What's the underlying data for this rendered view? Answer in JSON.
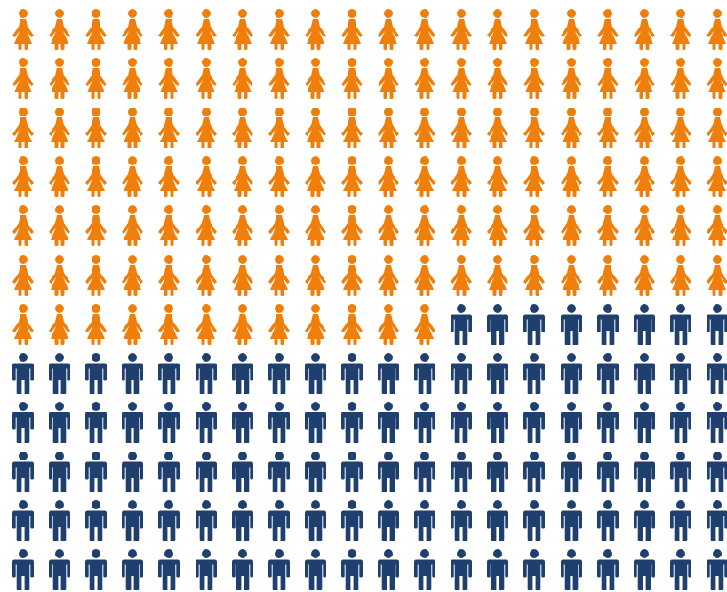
{
  "chart_data": {
    "type": "pictograph",
    "columns": 20,
    "rows": 12,
    "visible_total": 240,
    "series": [
      {
        "icon": "female-person-icon",
        "count": 132,
        "color": "#F07E0A"
      },
      {
        "icon": "male-person-icon",
        "count": 108,
        "color": "#1F3F6E"
      }
    ]
  }
}
